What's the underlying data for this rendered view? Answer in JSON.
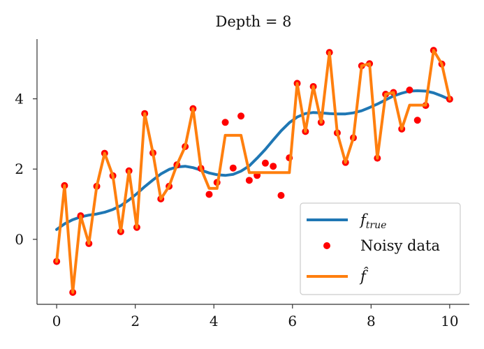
{
  "chart_data": {
    "type": "line",
    "title": "Depth = 8",
    "xlabel": "",
    "ylabel": "",
    "xlim": [
      -0.5,
      10.5
    ],
    "ylim": [
      -1.85,
      5.7
    ],
    "x_ticks": [
      0,
      2,
      4,
      6,
      8,
      10
    ],
    "x_tick_labels": [
      "0",
      "2",
      "4",
      "6",
      "8",
      "10"
    ],
    "y_ticks": [
      0,
      2,
      4
    ],
    "y_tick_labels": [
      "0",
      "2",
      "4"
    ],
    "grid": false,
    "legend_position": "lower-right",
    "legend": [
      {
        "label_main": "f",
        "label_sub": "true",
        "kind": "line",
        "color": "#1f77b4"
      },
      {
        "label_main": "Noisy data",
        "label_sub": "",
        "kind": "marker",
        "color": "#ff0000"
      },
      {
        "label_main": "f̂",
        "label_sub": "",
        "kind": "line",
        "color": "#ff7f0e"
      }
    ],
    "series": [
      {
        "name": "f_true",
        "type": "line",
        "color": "#1f77b4",
        "x": [
          0.0,
          0.2,
          0.41,
          0.61,
          0.82,
          1.02,
          1.22,
          1.43,
          1.63,
          1.84,
          2.04,
          2.24,
          2.45,
          2.65,
          2.86,
          3.06,
          3.27,
          3.47,
          3.67,
          3.88,
          4.08,
          4.29,
          4.49,
          4.69,
          4.9,
          5.1,
          5.31,
          5.51,
          5.71,
          5.92,
          6.12,
          6.33,
          6.53,
          6.73,
          6.94,
          7.14,
          7.35,
          7.55,
          7.76,
          7.96,
          8.16,
          8.37,
          8.57,
          8.78,
          8.98,
          9.18,
          9.39,
          9.59,
          9.8,
          10.0
        ],
        "y": [
          0.28,
          0.44,
          0.56,
          0.64,
          0.69,
          0.72,
          0.77,
          0.85,
          0.96,
          1.12,
          1.3,
          1.5,
          1.69,
          1.86,
          1.99,
          2.06,
          2.08,
          2.04,
          1.97,
          1.89,
          1.84,
          1.82,
          1.85,
          1.94,
          2.09,
          2.31,
          2.56,
          2.83,
          3.09,
          3.32,
          3.48,
          3.58,
          3.61,
          3.6,
          3.58,
          3.57,
          3.57,
          3.6,
          3.66,
          3.75,
          3.85,
          3.97,
          4.08,
          4.16,
          4.22,
          4.23,
          4.22,
          4.17,
          4.08,
          3.98
        ]
      },
      {
        "name": "Noisy data",
        "type": "scatter",
        "color": "#ff0000",
        "x": [
          0.0,
          0.2,
          0.41,
          0.61,
          0.82,
          1.02,
          1.22,
          1.43,
          1.63,
          1.84,
          2.04,
          2.24,
          2.45,
          2.65,
          2.86,
          3.06,
          3.27,
          3.47,
          3.67,
          3.88,
          4.08,
          4.29,
          4.49,
          4.69,
          4.9,
          5.1,
          5.31,
          5.51,
          5.71,
          5.92,
          6.12,
          6.33,
          6.53,
          6.73,
          6.94,
          7.14,
          7.35,
          7.55,
          7.76,
          7.96,
          8.16,
          8.37,
          8.57,
          8.78,
          8.98,
          9.18,
          9.39,
          9.59,
          9.8,
          10.0
        ],
        "y": [
          -0.63,
          1.53,
          -1.51,
          0.67,
          -0.12,
          1.51,
          2.45,
          1.81,
          0.22,
          1.95,
          0.34,
          3.58,
          2.46,
          1.15,
          1.51,
          2.12,
          2.64,
          3.72,
          2.02,
          1.28,
          1.62,
          3.33,
          2.03,
          3.51,
          1.68,
          1.82,
          2.17,
          2.08,
          1.25,
          2.32,
          4.44,
          3.07,
          4.35,
          3.33,
          5.32,
          3.03,
          2.19,
          2.89,
          4.94,
          5.0,
          2.31,
          4.13,
          4.18,
          3.14,
          4.25,
          3.39,
          3.81,
          5.38,
          4.99,
          3.99
        ]
      },
      {
        "name": "f̂",
        "type": "line",
        "color": "#ff7f0e",
        "x": [
          0.0,
          0.2,
          0.41,
          0.61,
          0.82,
          1.02,
          1.22,
          1.43,
          1.63,
          1.84,
          2.04,
          2.24,
          2.45,
          2.65,
          2.86,
          3.06,
          3.27,
          3.47,
          3.67,
          3.88,
          4.08,
          4.29,
          4.49,
          4.69,
          4.9,
          5.1,
          5.31,
          5.51,
          5.71,
          5.92,
          6.12,
          6.33,
          6.53,
          6.73,
          6.94,
          7.14,
          7.35,
          7.55,
          7.76,
          7.96,
          8.16,
          8.37,
          8.57,
          8.78,
          8.98,
          9.18,
          9.39,
          9.59,
          9.8,
          10.0
        ],
        "y": [
          -0.63,
          1.53,
          -1.51,
          0.67,
          -0.12,
          1.51,
          2.45,
          1.81,
          0.22,
          1.95,
          0.34,
          3.58,
          2.46,
          1.15,
          1.51,
          2.12,
          2.64,
          3.72,
          2.02,
          1.45,
          1.45,
          2.96,
          2.96,
          2.96,
          1.9,
          1.9,
          1.9,
          1.9,
          1.9,
          1.9,
          4.44,
          3.07,
          4.35,
          3.33,
          5.32,
          3.03,
          2.19,
          2.89,
          4.94,
          5.0,
          2.31,
          4.13,
          4.18,
          3.14,
          3.82,
          3.82,
          3.82,
          5.38,
          4.99,
          3.99
        ]
      }
    ]
  }
}
